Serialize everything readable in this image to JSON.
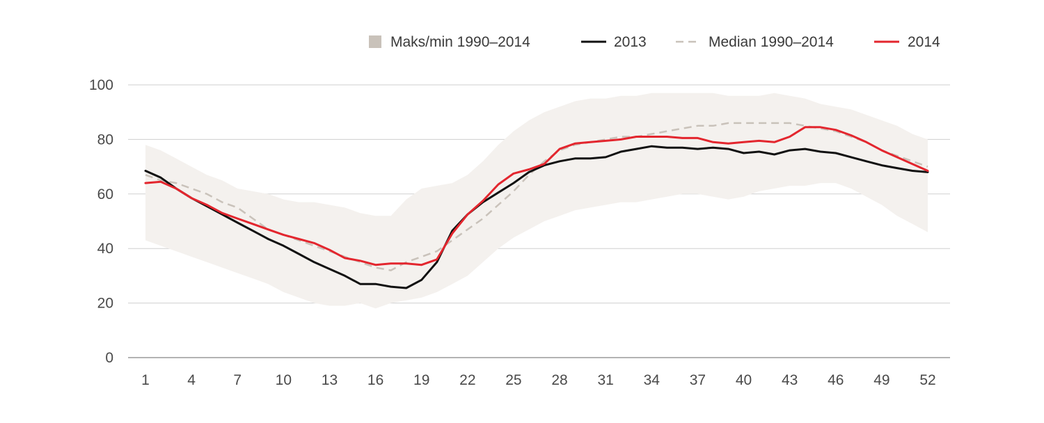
{
  "chart_data": {
    "type": "line",
    "title": "",
    "xlabel": "",
    "ylabel": "",
    "ylim": [
      0,
      100
    ],
    "xlim": [
      1,
      52
    ],
    "y_ticks": [
      0,
      20,
      40,
      60,
      80,
      100
    ],
    "x_ticks": [
      1,
      4,
      7,
      10,
      13,
      16,
      19,
      22,
      25,
      28,
      31,
      34,
      37,
      40,
      43,
      46,
      49,
      52
    ],
    "grid": "horizontal",
    "legend_position": "top-right",
    "colors": {
      "band": "#f4f1ee",
      "band_legend": "#c9c2ba",
      "median": "#c9c2ba",
      "y2013": "#111111",
      "y2014": "#e3262e",
      "grid": "#cfcfcf",
      "axis": "#9a9a9a"
    },
    "legend": [
      {
        "key": "band",
        "label": "Maks/min 1990–2014"
      },
      {
        "key": "y2013",
        "label": "2013"
      },
      {
        "key": "median",
        "label": "Median 1990–2014"
      },
      {
        "key": "y2014",
        "label": "2014"
      }
    ],
    "band": {
      "name": "Maks/min 1990–2014",
      "x": [
        1,
        2,
        3,
        4,
        5,
        6,
        7,
        8,
        9,
        10,
        11,
        12,
        13,
        14,
        15,
        16,
        17,
        18,
        19,
        20,
        21,
        22,
        23,
        24,
        25,
        26,
        27,
        28,
        29,
        30,
        31,
        32,
        33,
        34,
        35,
        36,
        37,
        38,
        39,
        40,
        41,
        42,
        43,
        44,
        45,
        46,
        47,
        48,
        49,
        50,
        51,
        52
      ],
      "max": [
        78,
        76,
        73,
        70,
        67,
        65,
        62,
        61,
        60,
        58,
        57,
        57,
        56,
        55,
        53,
        52,
        52,
        58,
        62,
        63,
        64,
        67,
        72,
        78,
        83,
        87,
        90,
        92,
        94,
        95,
        95,
        96,
        96,
        97,
        97,
        97,
        97,
        97,
        96,
        96,
        96,
        97,
        96,
        95,
        93,
        92,
        91,
        89,
        87,
        85,
        82,
        80
      ],
      "min": [
        43,
        41,
        39,
        37,
        35,
        33,
        31,
        29,
        27,
        24,
        22,
        20,
        19,
        19,
        20,
        18,
        20,
        21,
        22,
        24,
        27,
        30,
        35,
        40,
        44,
        47,
        50,
        52,
        54,
        55,
        56,
        57,
        57,
        58,
        59,
        60,
        60,
        59,
        58,
        59,
        61,
        62,
        63,
        63,
        64,
        64,
        62,
        59,
        56,
        52,
        49,
        46
      ]
    },
    "series": [
      {
        "name": "Median 1990–2014",
        "key": "median",
        "style": "dashed",
        "x": [
          1,
          2,
          3,
          4,
          5,
          6,
          7,
          8,
          9,
          10,
          11,
          12,
          13,
          14,
          15,
          16,
          17,
          18,
          19,
          20,
          21,
          22,
          23,
          24,
          25,
          26,
          27,
          28,
          29,
          30,
          31,
          32,
          33,
          34,
          35,
          36,
          37,
          38,
          39,
          40,
          41,
          42,
          43,
          44,
          45,
          46,
          47,
          48,
          49,
          50,
          51,
          52
        ],
        "values": [
          67,
          65,
          64,
          62,
          60,
          57,
          55,
          51,
          47,
          45,
          43,
          41,
          39,
          37,
          35,
          33,
          32,
          35,
          37,
          39,
          43,
          47,
          51,
          56,
          61,
          67,
          72,
          76,
          78,
          79,
          80,
          81,
          81,
          82,
          83,
          84,
          85,
          85,
          86,
          86,
          86,
          86,
          86,
          85,
          84,
          83,
          81,
          79,
          76,
          74,
          72,
          70
        ]
      },
      {
        "name": "2013",
        "key": "y2013",
        "style": "solid",
        "x": [
          1,
          2,
          3,
          4,
          5,
          6,
          7,
          8,
          9,
          10,
          11,
          12,
          13,
          14,
          15,
          16,
          17,
          18,
          19,
          20,
          21,
          22,
          23,
          24,
          25,
          26,
          27,
          28,
          29,
          30,
          31,
          32,
          33,
          34,
          35,
          36,
          37,
          38,
          39,
          40,
          41,
          42,
          43,
          44,
          45,
          46,
          47,
          48,
          49,
          50,
          51,
          52
        ],
        "values": [
          68.5,
          66,
          62,
          58.5,
          55.5,
          52.5,
          49.5,
          46.5,
          43.5,
          41,
          38,
          35,
          32.5,
          30,
          27,
          27,
          26,
          25.5,
          28.5,
          35,
          46.5,
          52.5,
          57,
          60.5,
          64,
          68,
          70.5,
          72,
          73,
          73,
          73.5,
          75.5,
          76.5,
          77.5,
          77,
          77,
          76.5,
          77,
          76.5,
          75,
          75.5,
          74.5,
          76,
          76.5,
          75.5,
          75,
          73.5,
          72,
          70.5,
          69.5,
          68.5,
          68
        ]
      },
      {
        "name": "2014",
        "key": "y2014",
        "style": "solid",
        "x": [
          1,
          2,
          3,
          4,
          5,
          6,
          7,
          8,
          9,
          10,
          11,
          12,
          13,
          14,
          15,
          16,
          17,
          18,
          19,
          20,
          21,
          22,
          23,
          24,
          25,
          26,
          27,
          28,
          29,
          30,
          31,
          32,
          33,
          34,
          35,
          36,
          37,
          38,
          39,
          40,
          41,
          42,
          43,
          44,
          45,
          46,
          47,
          48,
          49,
          50,
          51,
          52
        ],
        "values": [
          64,
          64.5,
          62,
          58.5,
          56,
          53,
          51,
          49,
          47,
          45,
          43.5,
          42,
          39.5,
          36.5,
          35.5,
          34,
          34.5,
          34.5,
          34,
          36,
          45.5,
          52.5,
          57.5,
          63.5,
          67.5,
          69,
          71,
          76.5,
          78.5,
          79,
          79.5,
          80,
          81,
          81,
          81,
          80.5,
          80.5,
          79,
          78.5,
          79,
          79.5,
          79,
          81,
          84.5,
          84.5,
          83.5,
          81.5,
          79,
          76,
          73.5,
          71,
          68.5
        ]
      }
    ]
  }
}
